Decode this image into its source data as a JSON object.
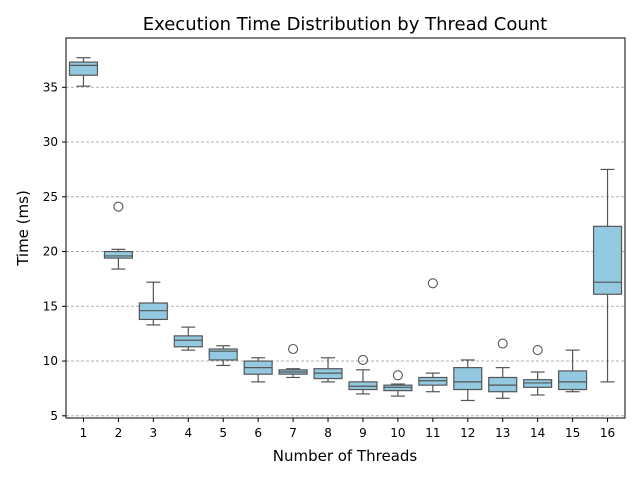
{
  "chart_data": {
    "type": "box",
    "title": "Execution Time Distribution by Thread Count",
    "xlabel": "Number of Threads",
    "ylabel": "Time (ms)",
    "ylim": [
      4.8,
      39.5
    ],
    "yticks": [
      5,
      10,
      15,
      20,
      25,
      30,
      35
    ],
    "grid": "y-dashed",
    "box_color": "#93cae1",
    "edge_color": "#555555",
    "categories": [
      "1",
      "2",
      "3",
      "4",
      "5",
      "6",
      "7",
      "8",
      "9",
      "10",
      "11",
      "12",
      "13",
      "14",
      "15",
      "16"
    ],
    "boxes": [
      {
        "whislo": 35.1,
        "q1": 36.1,
        "med": 37.0,
        "q3": 37.3,
        "whishi": 37.7,
        "fliers": []
      },
      {
        "whislo": 18.4,
        "q1": 19.4,
        "med": 19.6,
        "q3": 20.0,
        "whishi": 20.2,
        "fliers": [
          24.1
        ]
      },
      {
        "whislo": 13.3,
        "q1": 13.8,
        "med": 14.6,
        "q3": 15.3,
        "whishi": 17.2,
        "fliers": []
      },
      {
        "whislo": 11.0,
        "q1": 11.3,
        "med": 11.9,
        "q3": 12.3,
        "whishi": 13.1,
        "fliers": []
      },
      {
        "whislo": 9.6,
        "q1": 10.1,
        "med": 10.9,
        "q3": 11.1,
        "whishi": 11.4,
        "fliers": []
      },
      {
        "whislo": 8.1,
        "q1": 8.8,
        "med": 9.4,
        "q3": 10.0,
        "whishi": 10.3,
        "fliers": []
      },
      {
        "whislo": 8.5,
        "q1": 8.8,
        "med": 9.0,
        "q3": 9.2,
        "whishi": 9.3,
        "fliers": [
          11.1
        ]
      },
      {
        "whislo": 8.1,
        "q1": 8.4,
        "med": 8.9,
        "q3": 9.3,
        "whishi": 10.3,
        "fliers": []
      },
      {
        "whislo": 7.0,
        "q1": 7.4,
        "med": 7.7,
        "q3": 8.1,
        "whishi": 9.2,
        "fliers": [
          10.1
        ]
      },
      {
        "whislo": 6.8,
        "q1": 7.3,
        "med": 7.6,
        "q3": 7.8,
        "whishi": 7.9,
        "fliers": [
          8.7
        ]
      },
      {
        "whislo": 7.2,
        "q1": 7.8,
        "med": 8.2,
        "q3": 8.5,
        "whishi": 8.9,
        "fliers": [
          17.1
        ]
      },
      {
        "whislo": 6.4,
        "q1": 7.4,
        "med": 8.1,
        "q3": 9.4,
        "whishi": 10.1,
        "fliers": []
      },
      {
        "whislo": 6.6,
        "q1": 7.2,
        "med": 7.8,
        "q3": 8.5,
        "whishi": 9.4,
        "fliers": [
          11.6
        ]
      },
      {
        "whislo": 6.9,
        "q1": 7.6,
        "med": 8.0,
        "q3": 8.3,
        "whishi": 9.0,
        "fliers": [
          11.0
        ]
      },
      {
        "whislo": 7.2,
        "q1": 7.4,
        "med": 8.1,
        "q3": 9.1,
        "whishi": 11.0,
        "fliers": []
      },
      {
        "whislo": 8.1,
        "q1": 16.1,
        "med": 17.2,
        "q3": 22.3,
        "whishi": 27.5,
        "fliers": []
      }
    ]
  }
}
